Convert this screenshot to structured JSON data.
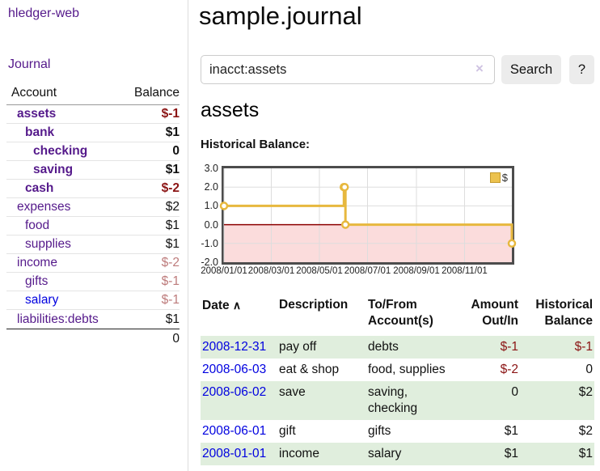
{
  "app": {
    "title_link": "hledger-web"
  },
  "sidebar": {
    "journal_link": "Journal",
    "accounts": {
      "header_account": "Account",
      "header_balance": "Balance",
      "rows": [
        {
          "name": "assets",
          "indent": 1,
          "bold": true,
          "color": "purple",
          "balance": "$-1",
          "balance_color": "dark-red",
          "balance_bold": true
        },
        {
          "name": "bank",
          "indent": 2,
          "bold": true,
          "color": "purple",
          "balance": "$1",
          "balance_color": "black",
          "balance_bold": true
        },
        {
          "name": "checking",
          "indent": 3,
          "bold": true,
          "color": "purple",
          "balance": "0",
          "balance_color": "black",
          "balance_bold": true
        },
        {
          "name": "saving",
          "indent": 3,
          "bold": true,
          "color": "purple",
          "balance": "$1",
          "balance_color": "black",
          "balance_bold": true
        },
        {
          "name": "cash",
          "indent": 2,
          "bold": true,
          "color": "purple",
          "balance": "$-2",
          "balance_color": "dark-red",
          "balance_bold": true
        },
        {
          "name": "expenses",
          "indent": 1,
          "bold": false,
          "color": "purple",
          "balance": "$2",
          "balance_color": "black",
          "balance_bold": false
        },
        {
          "name": "food",
          "indent": 2,
          "bold": false,
          "color": "purple",
          "balance": "$1",
          "balance_color": "black",
          "balance_bold": false
        },
        {
          "name": "supplies",
          "indent": 2,
          "bold": false,
          "color": "purple",
          "balance": "$1",
          "balance_color": "black",
          "balance_bold": false
        },
        {
          "name": "income",
          "indent": 1,
          "bold": false,
          "color": "purple",
          "balance": "$-2",
          "balance_color": "soft-red",
          "balance_bold": false
        },
        {
          "name": "gifts",
          "indent": 2,
          "bold": false,
          "color": "purple",
          "balance": "$-1",
          "balance_color": "soft-red",
          "balance_bold": false
        },
        {
          "name": "salary",
          "indent": 2,
          "bold": false,
          "color": "blue",
          "balance": "$-1",
          "balance_color": "soft-red",
          "balance_bold": false
        },
        {
          "name": "liabilities:debts",
          "indent": 1,
          "bold": false,
          "color": "purple",
          "balance": "$1",
          "balance_color": "black",
          "balance_bold": false
        }
      ],
      "total": "0"
    }
  },
  "main": {
    "title": "sample.journal",
    "search": {
      "value": "inacct:assets",
      "clear_icon": "×",
      "search_button": "Search",
      "help_button": "?"
    },
    "account_heading": "assets",
    "chart_title": "Historical Balance:"
  },
  "chart_data": {
    "type": "line",
    "title": "Historical Balance",
    "step": true,
    "series": [
      {
        "name": "$",
        "points": [
          [
            "2008-01-01",
            1
          ],
          [
            "2008-06-01",
            2
          ],
          [
            "2008-06-02",
            2
          ],
          [
            "2008-06-03",
            0
          ],
          [
            "2008-12-31",
            -1
          ]
        ]
      }
    ],
    "x_range": [
      "2008-01-01",
      "2008-12-31"
    ],
    "ylim": [
      -2,
      3
    ],
    "yticks": [
      3,
      2,
      1,
      0,
      -1,
      -2
    ],
    "ytick_labels": [
      "3.0",
      "2.0",
      "1.0",
      "0.0",
      "-1.0",
      "-2.0"
    ],
    "xticks": [
      "2008-01-01",
      "2008-03-01",
      "2008-05-01",
      "2008-07-01",
      "2008-09-01",
      "2008-11-01"
    ],
    "xtick_labels": [
      "2008/01/01",
      "2008/03/01",
      "2008/05/01",
      "2008/07/01",
      "2008/09/01",
      "2008/11/01"
    ],
    "legend": {
      "label": "$",
      "position": "top-right"
    },
    "grid": true
  },
  "register": {
    "headers": {
      "date": "Date",
      "sort_icon": "∧",
      "description": "Description",
      "account": "To/From Account(s)",
      "amount": "Amount Out/In",
      "balance": "Historical Balance"
    },
    "rows": [
      {
        "date": "2008-12-31",
        "description": "pay off",
        "accounts": "debts",
        "amount": "$-1",
        "amount_color": "dark-red",
        "balance": "$-1",
        "balance_color": "dark-red"
      },
      {
        "date": "2008-06-03",
        "description": "eat & shop",
        "accounts": "food, supplies",
        "amount": "$-2",
        "amount_color": "dark-red",
        "balance": "0",
        "balance_color": "black"
      },
      {
        "date": "2008-06-02",
        "description": "save",
        "accounts": "saving, checking",
        "amount": "0",
        "amount_color": "black",
        "balance": "$2",
        "balance_color": "black"
      },
      {
        "date": "2008-06-01",
        "description": "gift",
        "accounts": "gifts",
        "amount": "$1",
        "amount_color": "black",
        "balance": "$2",
        "balance_color": "black"
      },
      {
        "date": "2008-01-01",
        "description": "income",
        "accounts": "salary",
        "amount": "$1",
        "amount_color": "black",
        "balance": "$1",
        "balance_color": "black"
      }
    ]
  },
  "colors": {
    "purple_link": "#551a8b",
    "blue_link": "#0000e0",
    "negative_strong": "#8b1414",
    "negative_soft": "#bd7b7b",
    "row_green": "#e0eedd",
    "series_gold": "#e7b83e",
    "zero_line": "#8b0000",
    "negative_region": "#fbdcdc",
    "button_gray": "#ececec"
  }
}
